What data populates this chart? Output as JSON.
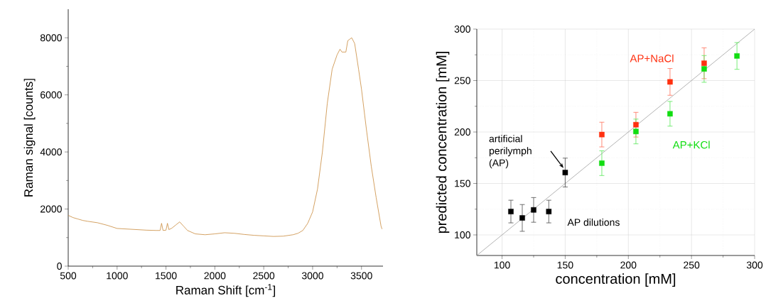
{
  "chart_data": [
    {
      "type": "line",
      "xlabel": "Raman Shift [cm$^{-1}$]",
      "ylabel": "Raman signal [counts]",
      "x": [
        500,
        550,
        600,
        650,
        700,
        800,
        900,
        1000,
        1100,
        1200,
        1300,
        1400,
        1440,
        1455,
        1470,
        1500,
        1515,
        1530,
        1560,
        1600,
        1640,
        1680,
        1720,
        1800,
        1900,
        2000,
        2100,
        2200,
        2300,
        2400,
        2500,
        2600,
        2700,
        2800,
        2850,
        2900,
        2950,
        3000,
        3050,
        3100,
        3150,
        3200,
        3250,
        3280,
        3300,
        3340,
        3360,
        3380,
        3400,
        3430,
        3470,
        3500,
        3550,
        3600,
        3650,
        3700,
        3710
      ],
      "values": [
        1780,
        1700,
        1650,
        1600,
        1570,
        1520,
        1430,
        1320,
        1300,
        1280,
        1260,
        1250,
        1250,
        1500,
        1250,
        1260,
        1500,
        1280,
        1330,
        1440,
        1550,
        1400,
        1250,
        1130,
        1100,
        1130,
        1170,
        1150,
        1110,
        1080,
        1060,
        1040,
        1050,
        1100,
        1150,
        1250,
        1500,
        1900,
        2700,
        4000,
        5700,
        6900,
        7400,
        7600,
        7500,
        7500,
        7900,
        7950,
        8000,
        7800,
        6900,
        6200,
        4800,
        3500,
        2400,
        1400,
        1300
      ],
      "color": "#c98a3c",
      "xlim": [
        500,
        3720
      ],
      "ylim": [
        0,
        9000
      ],
      "xticks": [
        500,
        {
          "value": 750,
          "label": null
        },
        1000,
        {
          "value": 1250,
          "label": null
        },
        1500,
        {
          "value": 1750,
          "label": null
        },
        2000,
        {
          "value": 2250,
          "label": null
        },
        2500,
        {
          "value": 2750,
          "label": null
        },
        3000,
        {
          "value": 3250,
          "label": null
        },
        3500
      ],
      "yticks": [
        0,
        {
          "value": 1000,
          "label": null
        },
        2000,
        {
          "value": 3000,
          "label": null
        },
        4000,
        {
          "value": 5000,
          "label": null
        },
        6000,
        {
          "value": 7000,
          "label": null
        },
        8000
      ]
    },
    {
      "type": "scatter",
      "xlabel": "concentration [mM]",
      "ylabel": "predicted concentration [mM]",
      "series": [
        {
          "color": "#000000",
          "x": [
            107,
            116,
            125,
            137,
            150
          ],
          "values": [
            122.7,
            116.5,
            124.3,
            122.7,
            160.6
          ],
          "errors": [
            11,
            13,
            12,
            11,
            14
          ]
        },
        {
          "name": "AP+NaCl",
          "color": "#ff3010",
          "x": [
            179,
            206,
            233,
            260
          ],
          "values": [
            197.5,
            207.1,
            248.7,
            266.8
          ],
          "errors": [
            12,
            12,
            13,
            15
          ]
        },
        {
          "name": "AP+KCl",
          "color": "#11dd11",
          "x": [
            179,
            206,
            233,
            260,
            286
          ],
          "values": [
            169.7,
            200.5,
            217.7,
            261.3,
            273.9
          ],
          "errors": [
            12,
            12,
            12,
            13,
            13
          ]
        },
        {
          "type": "line",
          "marker": "none",
          "color": "#a0a0a0",
          "x": [
            80,
            300
          ],
          "values": [
            80,
            300
          ]
        }
      ],
      "annotations": [
        "artificial perilymph (AP)",
        "AP dilutions"
      ],
      "marker": "square",
      "grid": true,
      "xlim": [
        80,
        300
      ],
      "ylim": [
        80,
        300
      ],
      "xticks": [
        100,
        {
          "value": 125,
          "label": null
        },
        150,
        {
          "value": 175,
          "label": null
        },
        200,
        {
          "value": 225,
          "label": null
        },
        250,
        {
          "value": 275,
          "label": null
        },
        300
      ],
      "yticks": [
        100,
        {
          "value": 125,
          "label": null
        },
        150,
        {
          "value": 175,
          "label": null
        },
        200,
        {
          "value": 225,
          "label": null
        },
        250,
        {
          "value": 275,
          "label": null
        },
        300
      ]
    }
  ]
}
